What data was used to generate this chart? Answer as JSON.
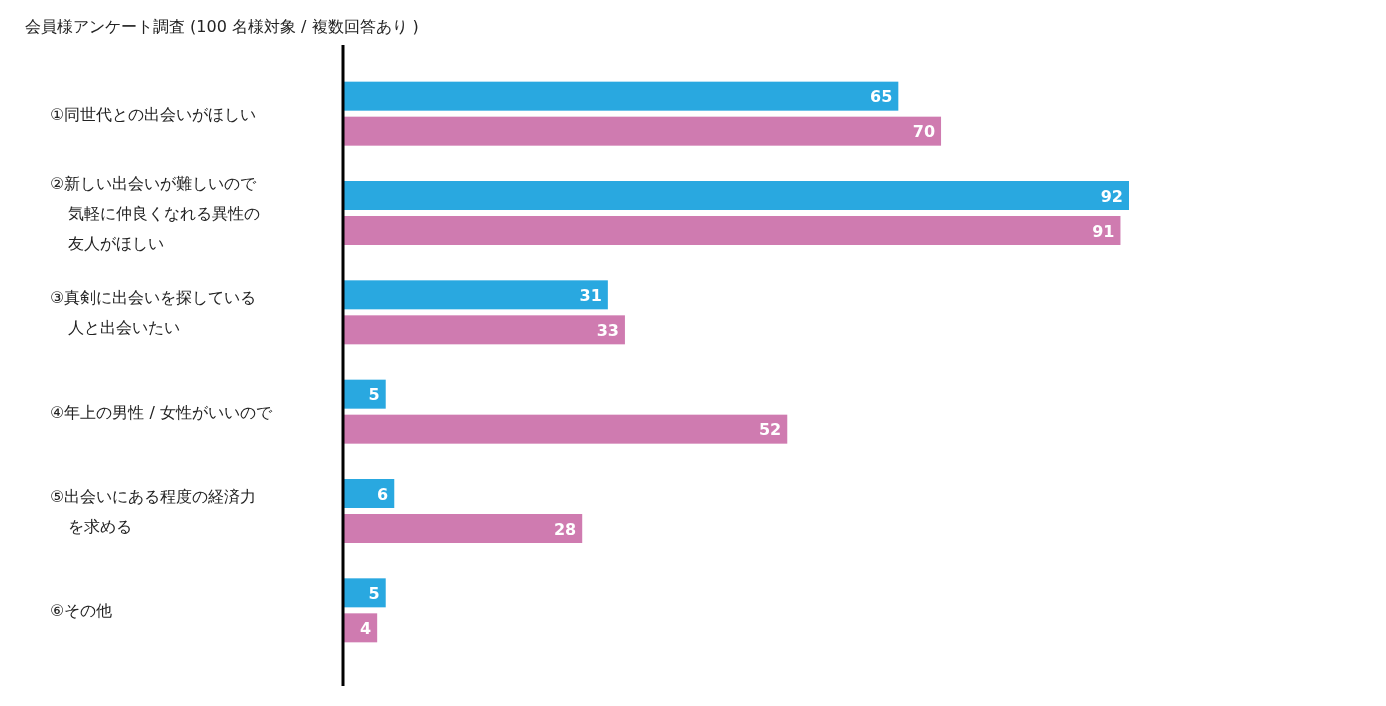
{
  "chart_data": {
    "type": "bar",
    "orientation": "horizontal",
    "title": "会員様アンケート調査 (100 名様対象 / 複数回答あり )",
    "categories": [
      "①同世代との出会いがほしい",
      "②新しい出会いが難しいので気軽に仲良くなれる異性の友人がほしい",
      "③真剣に出会いを探している人と出会いたい",
      "④年上の男性 / 女性がいいので",
      "⑤出会いにある程度の経済力を求める",
      "⑥その他"
    ],
    "series": [
      {
        "color": "#29a8e0",
        "values": [
          65,
          92,
          31,
          5,
          6,
          5
        ]
      },
      {
        "color": "#cf7bb0",
        "values": [
          70,
          91,
          33,
          52,
          28,
          4
        ]
      }
    ],
    "data_labels": true
  }
}
